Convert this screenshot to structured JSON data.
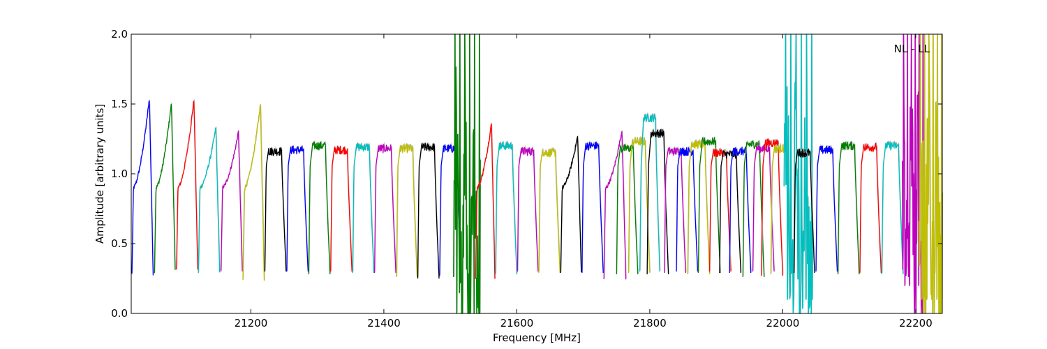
{
  "chart_data": {
    "type": "line",
    "annotation": "NL - LL",
    "xlabel": "Frequency [MHz]",
    "ylabel": "Amplitude [arbitrary units]",
    "xlim": [
      21020,
      22240
    ],
    "ylim": [
      0.0,
      2.0
    ],
    "xticks": [
      21200,
      21400,
      21600,
      21800,
      22000,
      22200
    ],
    "xtick_labels": [
      "21200",
      "21400",
      "21600",
      "21800",
      "22000",
      "22200"
    ],
    "yticks": [
      0.0,
      0.5,
      1.0,
      1.5,
      2.0
    ],
    "ytick_labels": [
      "0.0",
      "0.5",
      "1.0",
      "1.5",
      "2.0"
    ],
    "grid": false,
    "reference_color": "#bfbfbf",
    "colors": {
      "blue": "#0000ff",
      "green": "#008000",
      "red": "#ff0000",
      "cyan": "#00bfbf",
      "magenta": "#bf00bf",
      "olive": "#bfbf00",
      "black": "#000000"
    },
    "segments": [
      {
        "color": "blue",
        "x0": 21021,
        "x1": 21053,
        "lo": 0.28,
        "peak": 1.54,
        "shape": "peak"
      },
      {
        "color": "green",
        "x0": 21055,
        "x1": 21086,
        "lo": 0.3,
        "peak": 1.51,
        "shape": "peak"
      },
      {
        "color": "red",
        "x0": 21088,
        "x1": 21120,
        "lo": 0.32,
        "peak": 1.53,
        "shape": "peak"
      },
      {
        "color": "cyan",
        "x0": 21121,
        "x1": 21153,
        "lo": 0.28,
        "peak": 1.33,
        "shape": "peak"
      },
      {
        "color": "magenta",
        "x0": 21155,
        "x1": 21187,
        "lo": 0.3,
        "peak": 1.3,
        "shape": "peak"
      },
      {
        "color": "olive",
        "x0": 21188,
        "x1": 21220,
        "lo": 0.24,
        "peak": 1.5,
        "shape": "peak"
      },
      {
        "color": "black",
        "x0": 21221,
        "x1": 21253,
        "lo": 0.3,
        "peak": 1.2,
        "shape": "flat"
      },
      {
        "color": "blue",
        "x0": 21254,
        "x1": 21286,
        "lo": 0.3,
        "peak": 1.21,
        "shape": "flat"
      },
      {
        "color": "green",
        "x0": 21287,
        "x1": 21319,
        "lo": 0.28,
        "peak": 1.24,
        "shape": "flat"
      },
      {
        "color": "red",
        "x0": 21320,
        "x1": 21352,
        "lo": 0.3,
        "peak": 1.21,
        "shape": "flat"
      },
      {
        "color": "cyan",
        "x0": 21353,
        "x1": 21385,
        "lo": 0.29,
        "peak": 1.23,
        "shape": "flat"
      },
      {
        "color": "magenta",
        "x0": 21386,
        "x1": 21418,
        "lo": 0.29,
        "peak": 1.22,
        "shape": "flat"
      },
      {
        "color": "olive",
        "x0": 21419,
        "x1": 21450,
        "lo": 0.26,
        "peak": 1.22,
        "shape": "flat"
      },
      {
        "color": "black",
        "x0": 21451,
        "x1": 21483,
        "lo": 0.25,
        "peak": 1.23,
        "shape": "flat"
      },
      {
        "color": "blue",
        "x0": 21484,
        "x1": 21516,
        "lo": 0.27,
        "peak": 1.22,
        "shape": "flat"
      },
      {
        "color": "green",
        "x0": 21505,
        "x1": 21545,
        "lo": 0.0,
        "peak": 2.0,
        "shape": "noisy"
      },
      {
        "color": "red",
        "x0": 21538,
        "x1": 21567,
        "lo": 0.26,
        "peak": 1.36,
        "shape": "peak"
      },
      {
        "color": "cyan",
        "x0": 21568,
        "x1": 21600,
        "lo": 0.28,
        "peak": 1.24,
        "shape": "flat"
      },
      {
        "color": "magenta",
        "x0": 21601,
        "x1": 21632,
        "lo": 0.3,
        "peak": 1.2,
        "shape": "flat"
      },
      {
        "color": "olive",
        "x0": 21633,
        "x1": 21665,
        "lo": 0.29,
        "peak": 1.19,
        "shape": "flat"
      },
      {
        "color": "black",
        "x0": 21666,
        "x1": 21697,
        "lo": 0.29,
        "peak": 1.27,
        "shape": "peak"
      },
      {
        "color": "blue",
        "x0": 21698,
        "x1": 21730,
        "lo": 0.29,
        "peak": 1.24,
        "shape": "flat"
      },
      {
        "color": "magenta",
        "x0": 21731,
        "x1": 21764,
        "lo": 0.25,
        "peak": 1.31,
        "shape": "peak"
      },
      {
        "color": "green",
        "x0": 21750,
        "x1": 21782,
        "lo": 0.28,
        "peak": 1.22,
        "shape": "flat"
      },
      {
        "color": "olive",
        "x0": 21768,
        "x1": 21800,
        "lo": 0.29,
        "peak": 1.27,
        "shape": "flat"
      },
      {
        "color": "cyan",
        "x0": 21785,
        "x1": 21815,
        "lo": 0.3,
        "peak": 1.44,
        "shape": "flat"
      },
      {
        "color": "black",
        "x0": 21796,
        "x1": 21828,
        "lo": 0.28,
        "peak": 1.33,
        "shape": "flat"
      },
      {
        "color": "magenta",
        "x0": 21822,
        "x1": 21854,
        "lo": 0.29,
        "peak": 1.2,
        "shape": "flat"
      },
      {
        "color": "blue",
        "x0": 21840,
        "x1": 21872,
        "lo": 0.3,
        "peak": 1.2,
        "shape": "flat"
      },
      {
        "color": "olive",
        "x0": 21857,
        "x1": 21890,
        "lo": 0.28,
        "peak": 1.25,
        "shape": "flat"
      },
      {
        "color": "green",
        "x0": 21873,
        "x1": 21906,
        "lo": 0.29,
        "peak": 1.27,
        "shape": "flat"
      },
      {
        "color": "red",
        "x0": 21890,
        "x1": 21922,
        "lo": 0.3,
        "peak": 1.19,
        "shape": "flat"
      },
      {
        "color": "black",
        "x0": 21905,
        "x1": 21937,
        "lo": 0.29,
        "peak": 1.18,
        "shape": "flat"
      },
      {
        "color": "blue",
        "x0": 21920,
        "x1": 21952,
        "lo": 0.29,
        "peak": 1.2,
        "shape": "flat"
      },
      {
        "color": "green",
        "x0": 21940,
        "x1": 21972,
        "lo": 0.26,
        "peak": 1.25,
        "shape": "flat"
      },
      {
        "color": "magenta",
        "x0": 21955,
        "x1": 21987,
        "lo": 0.3,
        "peak": 1.22,
        "shape": "flat"
      },
      {
        "color": "red",
        "x0": 21968,
        "x1": 22000,
        "lo": 0.27,
        "peak": 1.26,
        "shape": "flat"
      },
      {
        "color": "olive",
        "x0": 21982,
        "x1": 22014,
        "lo": 0.28,
        "peak": 1.22,
        "shape": "flat"
      },
      {
        "color": "cyan",
        "x0": 22002,
        "x1": 22045,
        "lo": 0.1,
        "peak": 2.0,
        "shape": "noisy"
      },
      {
        "color": "black",
        "x0": 22017,
        "x1": 22048,
        "lo": 0.29,
        "peak": 1.19,
        "shape": "flat"
      },
      {
        "color": "blue",
        "x0": 22050,
        "x1": 22082,
        "lo": 0.3,
        "peak": 1.21,
        "shape": "flat"
      },
      {
        "color": "green",
        "x0": 22083,
        "x1": 22115,
        "lo": 0.28,
        "peak": 1.24,
        "shape": "flat"
      },
      {
        "color": "red",
        "x0": 22116,
        "x1": 22148,
        "lo": 0.29,
        "peak": 1.23,
        "shape": "flat"
      },
      {
        "color": "cyan",
        "x0": 22149,
        "x1": 22181,
        "lo": 0.28,
        "peak": 1.24,
        "shape": "flat"
      },
      {
        "color": "magenta",
        "x0": 22180,
        "x1": 22212,
        "lo": 0.2,
        "peak": 2.0,
        "shape": "noisy"
      },
      {
        "color": "olive",
        "x0": 22205,
        "x1": 22240,
        "lo": 0.1,
        "peak": 2.0,
        "shape": "noisy"
      }
    ]
  }
}
